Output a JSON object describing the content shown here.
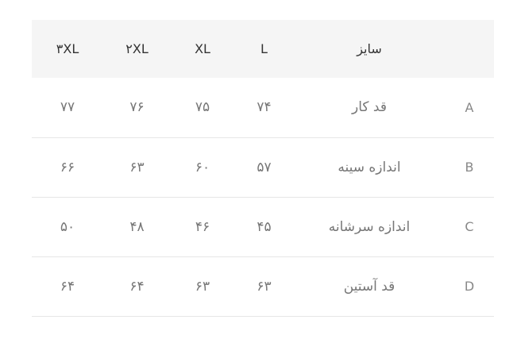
{
  "table": {
    "headers": [
      "",
      "سایز",
      "L",
      "XL",
      "۲XL",
      "۳XL"
    ],
    "rows": [
      {
        "key": "A",
        "label": "قد کار",
        "values": [
          "۷۴",
          "۷۵",
          "۷۶",
          "۷۷"
        ]
      },
      {
        "key": "B",
        "label": "اندازه سینه",
        "values": [
          "۵۷",
          "۶۰",
          "۶۳",
          "۶۶"
        ]
      },
      {
        "key": "C",
        "label": "اندازه سرشانه",
        "values": [
          "۴۵",
          "۴۶",
          "۴۸",
          "۵۰"
        ]
      },
      {
        "key": "D",
        "label": "قد آستین",
        "values": [
          "۶۳",
          "۶۳",
          "۶۴",
          "۶۴"
        ]
      }
    ]
  }
}
